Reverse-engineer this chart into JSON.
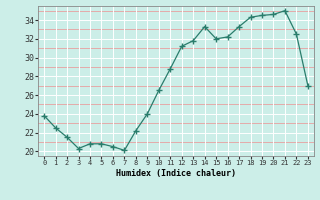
{
  "x": [
    0,
    1,
    2,
    3,
    4,
    5,
    6,
    7,
    8,
    9,
    10,
    11,
    12,
    13,
    14,
    15,
    16,
    17,
    18,
    19,
    20,
    21,
    22,
    23
  ],
  "y": [
    23.8,
    22.5,
    21.5,
    20.3,
    20.8,
    20.8,
    20.5,
    20.1,
    22.2,
    24.0,
    26.5,
    28.8,
    31.2,
    31.8,
    33.3,
    32.0,
    32.2,
    33.3,
    34.3,
    34.5,
    34.6,
    35.0,
    32.5,
    27.0
  ],
  "xlabel": "Humidex (Indice chaleur)",
  "xlim": [
    -0.5,
    23.5
  ],
  "ylim": [
    19.5,
    35.5
  ],
  "yticks": [
    20,
    22,
    24,
    26,
    28,
    30,
    32,
    34
  ],
  "xticks": [
    0,
    1,
    2,
    3,
    4,
    5,
    6,
    7,
    8,
    9,
    10,
    11,
    12,
    13,
    14,
    15,
    16,
    17,
    18,
    19,
    20,
    21,
    22,
    23
  ],
  "line_color": "#2a7d6c",
  "bg_color": "#cceee8",
  "grid_major_color": "#ffffff",
  "grid_minor_color": "#e8a0a0",
  "spine_color": "#888888"
}
